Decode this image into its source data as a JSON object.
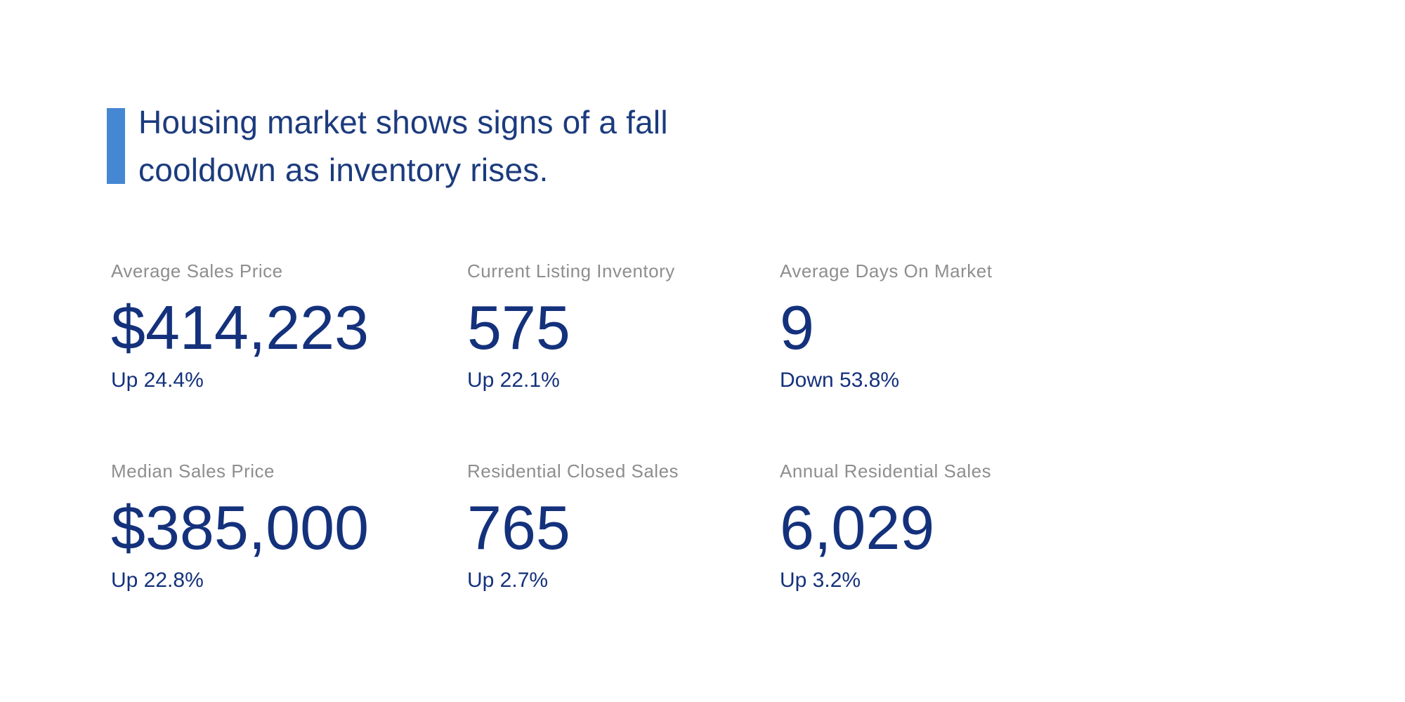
{
  "header": {
    "lines": [
      "Housing market shows signs of a fall",
      "cooldown as inventory rises."
    ],
    "accent_color": "#4587D3",
    "text_color": "#1C3B7D"
  },
  "colors": {
    "background": "#FFFFFF",
    "label_gray": "#8E8E90",
    "value_navy": "#14317C"
  },
  "stats": [
    {
      "label": "Average Sales Price",
      "value": "$414,223",
      "change": "Up 24.4%",
      "direction": "up"
    },
    {
      "label": "Current Listing Inventory",
      "value": "575",
      "change": "Up 22.1%",
      "direction": "up"
    },
    {
      "label": "Average Days On Market",
      "value": "9",
      "change": "Down 53.8%",
      "direction": "down"
    },
    {
      "label": "Median Sales Price",
      "value": "$385,000",
      "change": "Up 22.8%",
      "direction": "up"
    },
    {
      "label": "Residential Closed Sales",
      "value": "765",
      "change": "Up 2.7%",
      "direction": "up"
    },
    {
      "label": "Annual Residential Sales",
      "value": "6,029",
      "change": "Up 3.2%",
      "direction": "up"
    }
  ]
}
